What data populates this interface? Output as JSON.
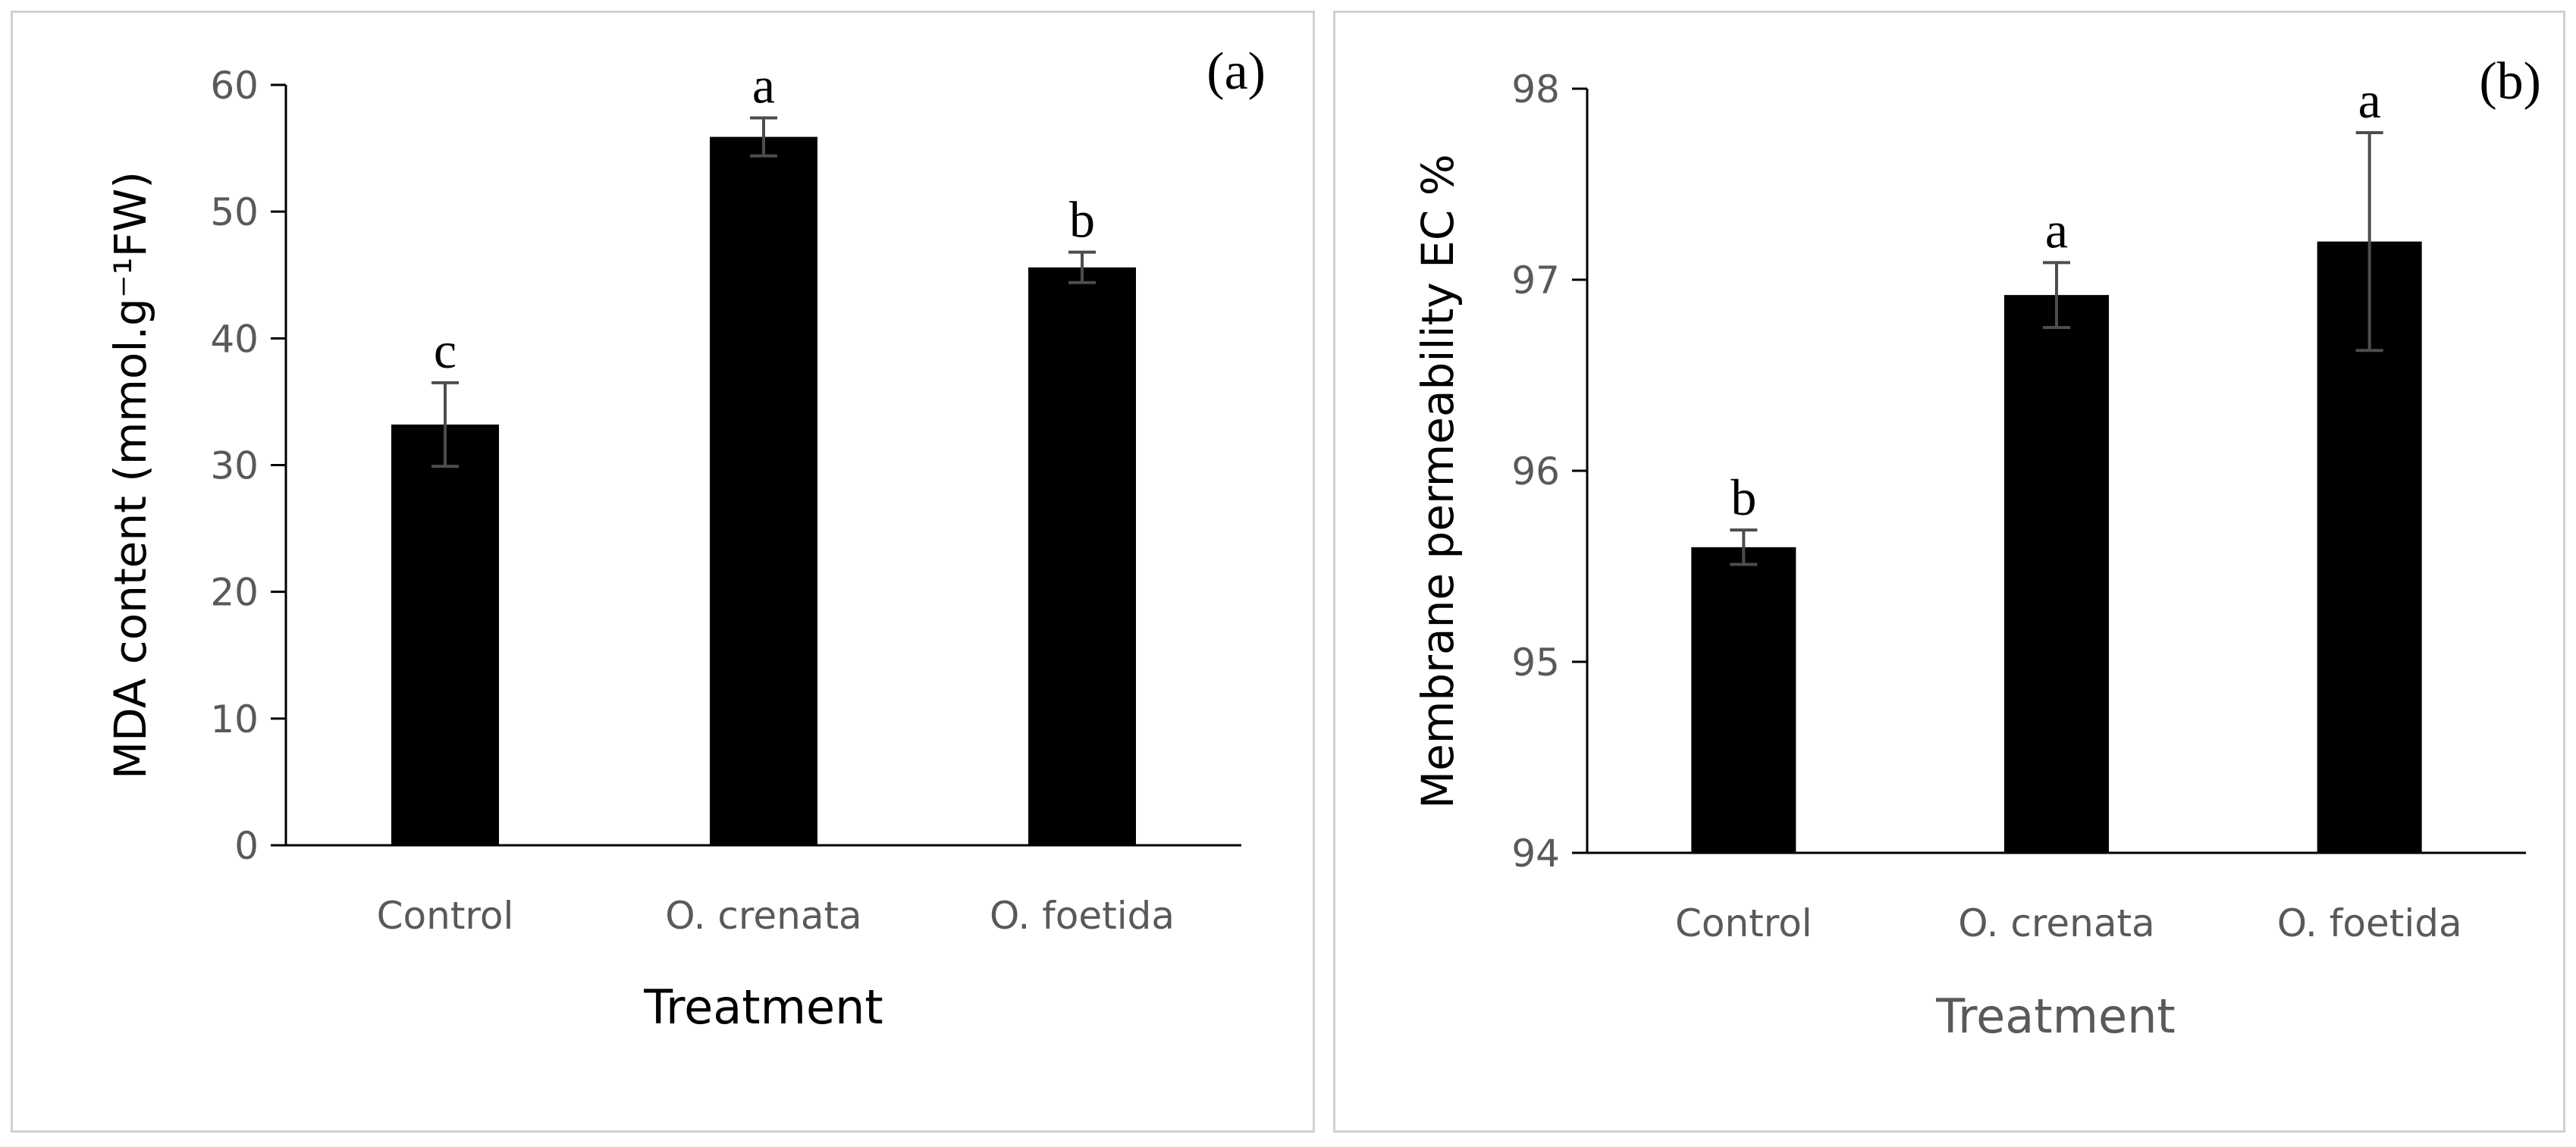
{
  "chart_data": [
    {
      "type": "bar",
      "panel_label": "(a)",
      "categories": [
        "Control",
        "O. crenata",
        "O. foetida"
      ],
      "values": [
        33.2,
        55.9,
        45.6
      ],
      "errors": [
        3.3,
        1.5,
        1.2
      ],
      "significance": [
        "c",
        "a",
        "b"
      ],
      "ylabel": "MDA content (mmol.g⁻¹FW)",
      "xlabel": "Treatment",
      "ylim": [
        0,
        60
      ],
      "yticks": [
        0,
        10,
        20,
        30,
        40,
        50,
        60
      ],
      "bar_color": "#000000"
    },
    {
      "type": "bar",
      "panel_label": "(b)",
      "categories": [
        "Control",
        "O. crenata",
        "O. foetida"
      ],
      "values": [
        95.6,
        96.92,
        97.2
      ],
      "errors": [
        0.09,
        0.17,
        0.57
      ],
      "significance": [
        "b",
        "a",
        "a"
      ],
      "ylabel": "Membrane permeability EC %",
      "xlabel": "Treatment",
      "ylim": [
        94,
        98
      ],
      "yticks": [
        94,
        95,
        96,
        97,
        98
      ],
      "bar_color": "#000000"
    }
  ]
}
